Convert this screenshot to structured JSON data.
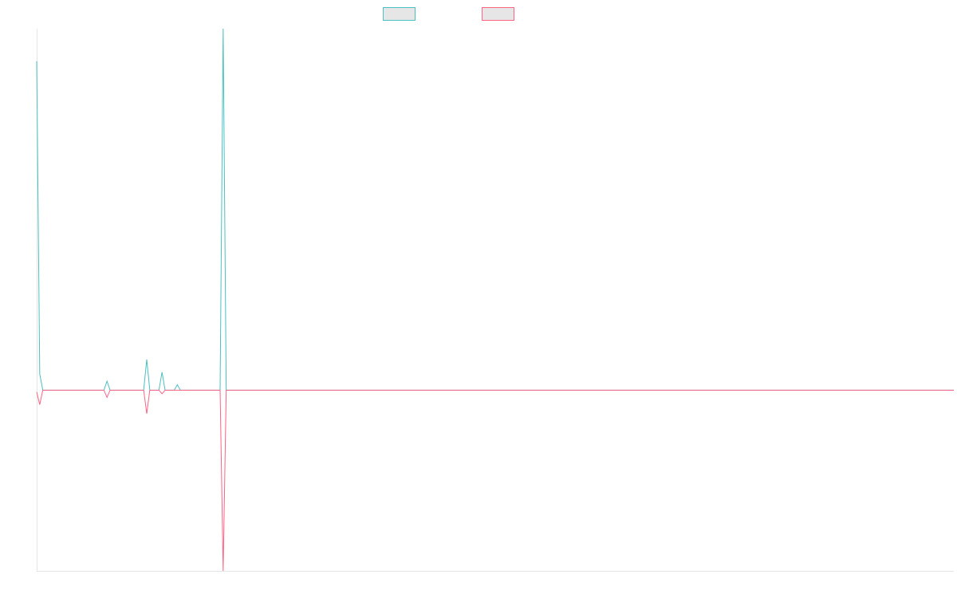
{
  "chart_data": {
    "type": "line",
    "title": "",
    "xlabel": "",
    "ylabel": "",
    "grid": false,
    "legend": {
      "placement": "top-center",
      "entries": [
        {
          "name": "",
          "color": "#4bc0c0"
        },
        {
          "name": "",
          "color": "#ff6384"
        }
      ]
    },
    "xlim": [
      0,
      300
    ],
    "ylim": [
      -1.0,
      2.0
    ],
    "series": [
      {
        "name": "",
        "color": "#4bc0c0",
        "points": [
          [
            0,
            1.82
          ],
          [
            1,
            0.09
          ],
          [
            2,
            0
          ],
          [
            22,
            0
          ],
          [
            23,
            0.05
          ],
          [
            24,
            0
          ],
          [
            35,
            0
          ],
          [
            36,
            0.17
          ],
          [
            37,
            0
          ],
          [
            40,
            0
          ],
          [
            41,
            0.1
          ],
          [
            42,
            0
          ],
          [
            45,
            0
          ],
          [
            46,
            0.03
          ],
          [
            47,
            0
          ],
          [
            60,
            0
          ],
          [
            61,
            2.0
          ],
          [
            62,
            0
          ],
          [
            300,
            0
          ]
        ]
      },
      {
        "name": "",
        "color": "#ff6384",
        "points": [
          [
            0,
            -0.01
          ],
          [
            1,
            -0.08
          ],
          [
            2,
            0
          ],
          [
            22,
            0
          ],
          [
            23,
            -0.04
          ],
          [
            24,
            0
          ],
          [
            35,
            0
          ],
          [
            36,
            -0.13
          ],
          [
            37,
            0
          ],
          [
            40,
            0
          ],
          [
            41,
            -0.02
          ],
          [
            42,
            0
          ],
          [
            60,
            0
          ],
          [
            61,
            -1.0
          ],
          [
            62,
            0
          ],
          [
            300,
            0
          ]
        ]
      }
    ]
  }
}
